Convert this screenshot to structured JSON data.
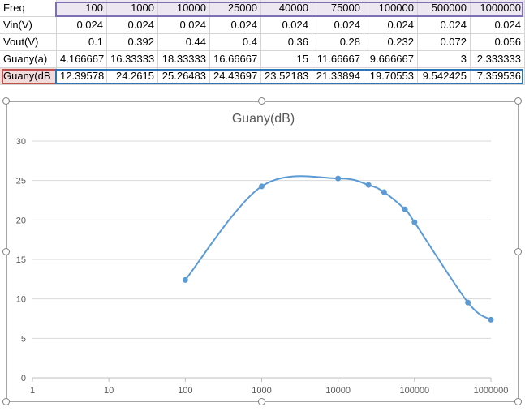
{
  "sheet": {
    "columns": [
      "Freq",
      "100",
      "1000",
      "10000",
      "25000",
      "40000",
      "75000",
      "100000",
      "500000",
      "1000000"
    ],
    "rows": [
      {
        "label": "Vin(V)",
        "values": [
          "0.024",
          "0.024",
          "0.024",
          "0.024",
          "0.024",
          "0.024",
          "0.024",
          "0.024",
          "0.024"
        ]
      },
      {
        "label": "Vout(V)",
        "values": [
          "0.1",
          "0.392",
          "0.44",
          "0.4",
          "0.36",
          "0.28",
          "0.232",
          "0.072",
          "0.056"
        ]
      },
      {
        "label": "Guany(a)",
        "values": [
          "4.166667",
          "16.33333",
          "18.33333",
          "16.66667",
          "15",
          "11.66667",
          "9.666667",
          "3",
          "2.333333"
        ]
      },
      {
        "label": "Guany(dB",
        "values": [
          "12.39578",
          "24.2615",
          "25.26483",
          "24.43697",
          "23.52183",
          "21.33894",
          "19.70553",
          "9.542425",
          "7.359536"
        ]
      }
    ],
    "colors": {
      "series_range": "#7f6fb3",
      "name_range": "#c0504d",
      "values_range": "#2e75b6"
    }
  },
  "chart_data": {
    "type": "line",
    "title": "Guany(dB)",
    "xscale": "log",
    "x": [
      100,
      1000,
      10000,
      25000,
      40000,
      75000,
      100000,
      500000,
      1000000
    ],
    "series": [
      {
        "name": "Guany(dB)",
        "values": [
          12.39578,
          24.2615,
          25.26483,
          24.43697,
          23.52183,
          21.33894,
          19.70553,
          9.542425,
          7.359536
        ],
        "color": "#5b9bd5"
      }
    ],
    "xlim": [
      1,
      1000000
    ],
    "ylim": [
      0,
      30
    ],
    "x_ticks": [
      "1",
      "10",
      "100",
      "1000",
      "10000",
      "100000",
      "1000000"
    ],
    "y_ticks": [
      "0",
      "5",
      "10",
      "15",
      "20",
      "25",
      "30"
    ],
    "grid": "horizontal",
    "smooth": true
  }
}
